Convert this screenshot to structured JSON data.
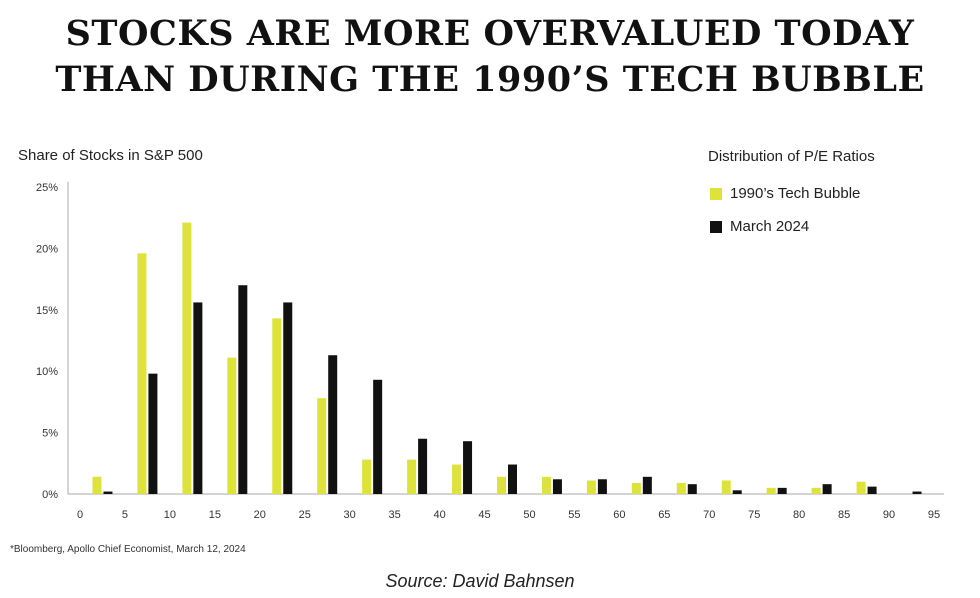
{
  "title_line1": "STOCKS ARE MORE OVERVALUED TODAY",
  "title_line2": "THAN DURING THE 1990’S TECH BUBBLE",
  "footnote": "*Bloomberg, Apollo Chief Economist, March 12, 2024",
  "source": "Source: David Bahnsen",
  "chart_data": {
    "type": "bar",
    "ylabel": "Share of Stocks in S&P 500",
    "legend_title": "Distribution of P/E Ratios",
    "legend_position": "top-right",
    "ylim": [
      0,
      25
    ],
    "yticks": [
      "0%",
      "5%",
      "10%",
      "15%",
      "20%",
      "25%"
    ],
    "xticks": [
      "0",
      "5",
      "10",
      "15",
      "20",
      "25",
      "30",
      "35",
      "40",
      "45",
      "50",
      "55",
      "60",
      "65",
      "70",
      "75",
      "80",
      "85",
      "90",
      "95"
    ],
    "bin_centers": [
      2.5,
      7.5,
      12.5,
      17.5,
      22.5,
      27.5,
      32.5,
      37.5,
      42.5,
      47.5,
      52.5,
      57.5,
      62.5,
      67.5,
      72.5,
      77.5,
      82.5,
      87.5,
      92.5
    ],
    "grid": false,
    "series": [
      {
        "name": "1990’s Tech Bubble",
        "color": "#dde33a",
        "values": [
          1.4,
          19.6,
          22.1,
          11.1,
          14.3,
          7.8,
          2.8,
          2.8,
          2.4,
          1.4,
          1.4,
          1.1,
          0.9,
          0.9,
          1.1,
          0.5,
          0.5,
          1.0,
          0.0
        ]
      },
      {
        "name": "March 2024",
        "color": "#111111",
        "values": [
          0.2,
          9.8,
          15.6,
          17.0,
          15.6,
          11.3,
          9.3,
          4.5,
          4.3,
          2.4,
          1.2,
          1.2,
          1.4,
          0.8,
          0.3,
          0.5,
          0.8,
          0.6,
          0.2
        ]
      }
    ]
  }
}
